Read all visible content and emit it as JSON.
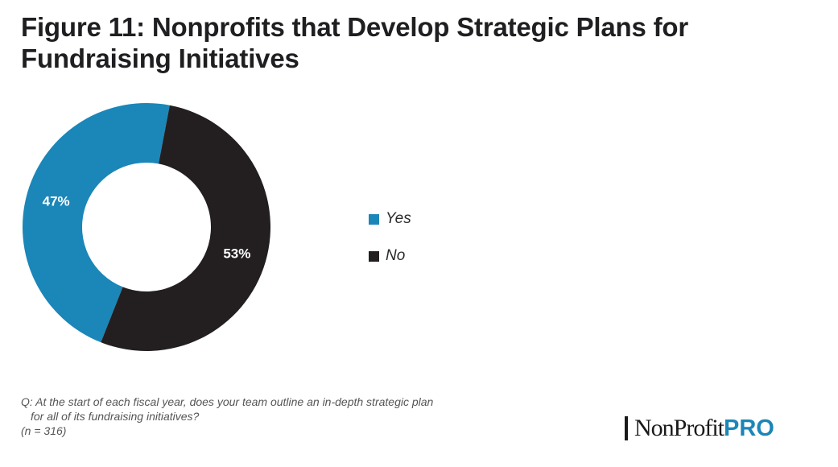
{
  "header": {
    "title_line1": "Figure 11: Nonprofits that Develop Strategic Plans for",
    "title_line2": "Fundraising Initiatives"
  },
  "chart_data": {
    "type": "pie",
    "subtype": "donut",
    "title": "Figure 11: Nonprofits that Develop Strategic Plans for Fundraising Initiatives",
    "categories": [
      "Yes",
      "No"
    ],
    "values": [
      47,
      53
    ],
    "labels": [
      "47%",
      "53%"
    ],
    "colors": [
      "#1b86b8",
      "#231f20"
    ],
    "legend_position": "right"
  },
  "legend": {
    "items": [
      {
        "label": "Yes",
        "color": "#1b86b8"
      },
      {
        "label": "No",
        "color": "#231f20"
      }
    ]
  },
  "footnote": {
    "line1": "Q: At the start of each fiscal year, does your team outline an in-depth strategic plan",
    "line2": "for all of its  fundraising initiatives?",
    "line3": "(n = 316)"
  },
  "logo": {
    "name_part": "NonProfit",
    "pro_part": "PRO",
    "pro_color": "#1b86b8"
  }
}
